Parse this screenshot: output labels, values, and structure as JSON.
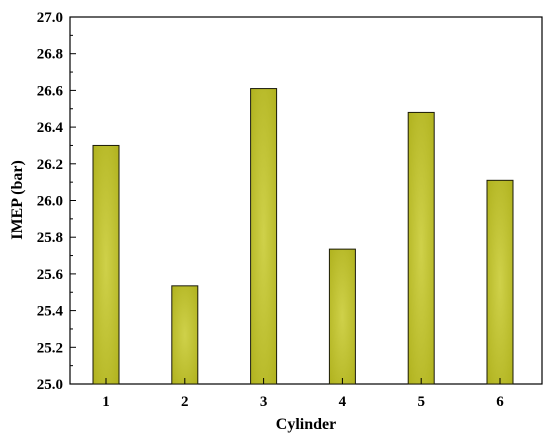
{
  "chart_data": {
    "type": "bar",
    "title": "",
    "xlabel": "Cylinder",
    "ylabel": "IMEP (bar)",
    "categories": [
      "1",
      "2",
      "3",
      "4",
      "5",
      "6"
    ],
    "values": [
      26.3,
      25.535,
      26.61,
      25.735,
      26.48,
      26.11
    ],
    "ylim": [
      25.0,
      27.0
    ],
    "yticks": [
      "25.0",
      "25.2",
      "25.4",
      "25.6",
      "25.8",
      "26.0",
      "26.2",
      "26.4",
      "26.6",
      "26.8",
      "27.0"
    ],
    "grid": false,
    "legend": "none",
    "bar_color": "#b0b21e",
    "bar_highlight": "#cfd14a",
    "bar_edge": "#1a1a0a"
  }
}
